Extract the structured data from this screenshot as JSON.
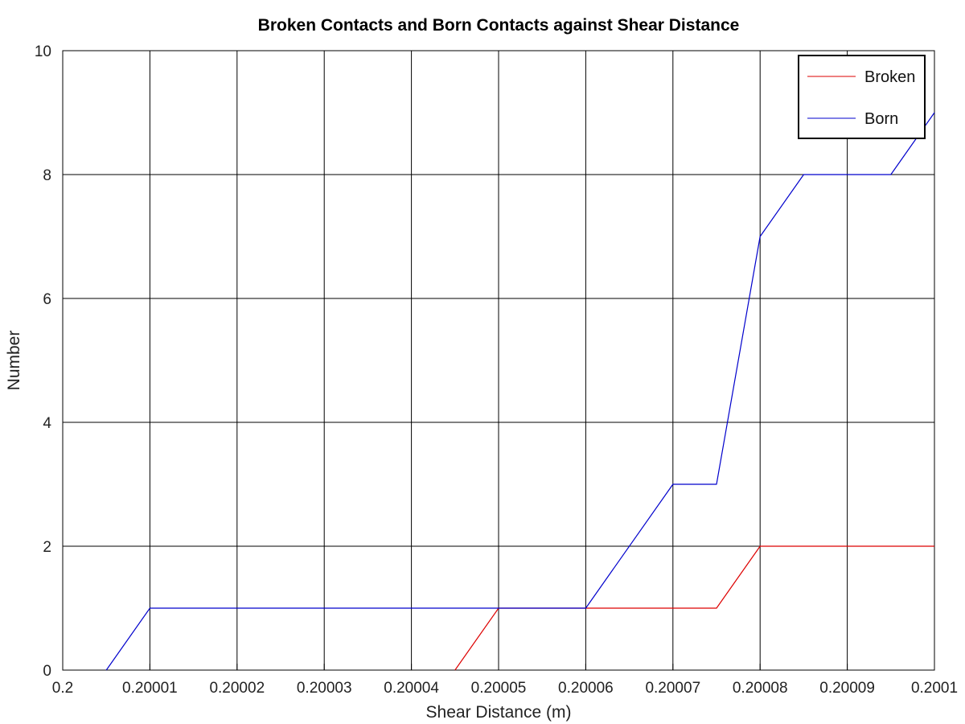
{
  "chart_data": {
    "type": "line",
    "title": "Broken Contacts and Born Contacts against Shear Distance",
    "xlabel": "Shear Distance (m)",
    "ylabel": "Number",
    "xlim": [
      0.2,
      0.2001
    ],
    "ylim": [
      0,
      10
    ],
    "x_ticks": [
      0.2,
      0.20001,
      0.20002,
      0.20003,
      0.20004,
      0.20005,
      0.20006,
      0.20007,
      0.20008,
      0.20009,
      0.2001
    ],
    "x_tick_labels": [
      "0.2",
      "0.20001",
      "0.20002",
      "0.20003",
      "0.20004",
      "0.20005",
      "0.20006",
      "0.20007",
      "0.20008",
      "0.20009",
      "0.2001"
    ],
    "y_ticks": [
      0,
      2,
      4,
      6,
      8,
      10
    ],
    "y_tick_labels": [
      "0",
      "2",
      "4",
      "6",
      "8",
      "10"
    ],
    "grid": true,
    "legend_position": "top-right",
    "series": [
      {
        "name": "Broken",
        "color": "#dd0000",
        "points": [
          [
            0.200045,
            0
          ],
          [
            0.20005,
            1
          ],
          [
            0.20006,
            1
          ],
          [
            0.20007,
            1
          ],
          [
            0.200075,
            1
          ],
          [
            0.20008,
            2
          ],
          [
            0.20009,
            2
          ],
          [
            0.2001,
            2
          ]
        ]
      },
      {
        "name": "Born",
        "color": "#0000cc",
        "points": [
          [
            0.200005,
            0
          ],
          [
            0.20001,
            1
          ],
          [
            0.20002,
            1
          ],
          [
            0.20003,
            1
          ],
          [
            0.20004,
            1
          ],
          [
            0.20005,
            1
          ],
          [
            0.20006,
            1
          ],
          [
            0.20007,
            3
          ],
          [
            0.200075,
            3
          ],
          [
            0.20008,
            7
          ],
          [
            0.200085,
            8
          ],
          [
            0.20009,
            8
          ],
          [
            0.200095,
            8
          ],
          [
            0.2001,
            9
          ]
        ]
      }
    ]
  }
}
